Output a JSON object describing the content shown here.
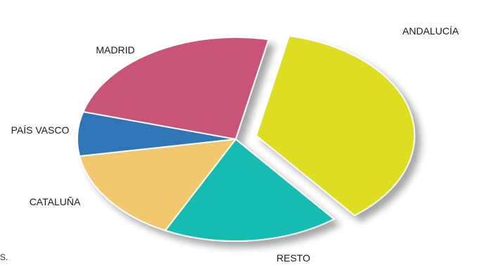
{
  "chart_data": {
    "type": "pie",
    "title": "",
    "exploded": [
      "ANDALUCÍA"
    ],
    "slices": [
      {
        "label": "ANDALUCÍA",
        "value": 36,
        "color": "#dddd22"
      },
      {
        "label": "RESTO",
        "value": 18,
        "color": "#18bcb0"
      },
      {
        "label": "CATALUÑA",
        "value": 15,
        "color": "#f2c86e"
      },
      {
        "label": "PAÍS VASCO",
        "value": 7,
        "color": "#2f76b5"
      },
      {
        "label": "MADRID",
        "value": 24,
        "color": "#c85478"
      }
    ]
  },
  "stray_text": "S."
}
